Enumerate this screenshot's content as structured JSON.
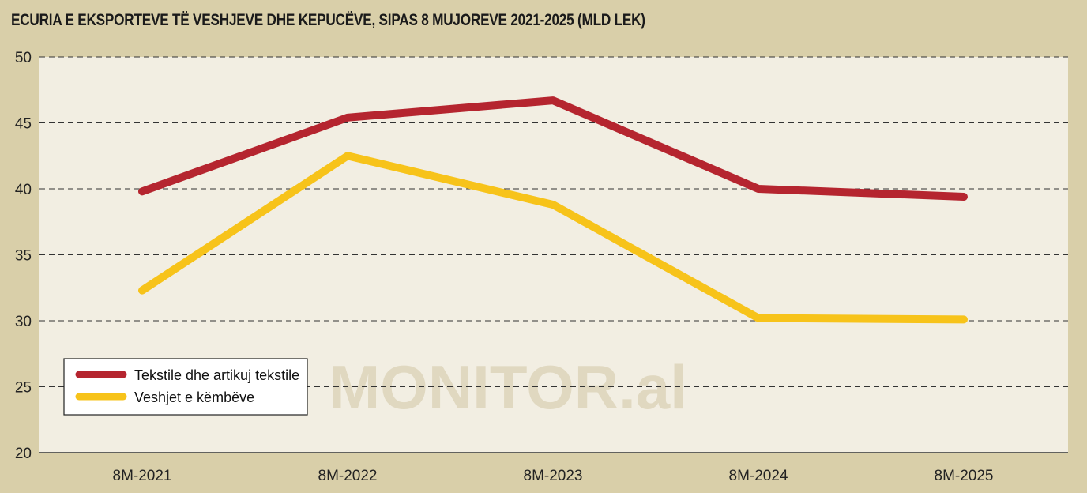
{
  "title": "ECURIA E EKSPORTEVE TË VESHJEVE DHE KEPUCËVE, SIPAS 8 MUJOREVE 2021-2025 (MLD LEK)",
  "watermark": "MONITOR.al",
  "colors": {
    "background": "#d9cfa9",
    "plot_background": "#f2eee2",
    "series_1": "#b5252f",
    "series_2": "#f7c31a"
  },
  "chart_data": {
    "type": "line",
    "title": "ECURIA E EKSPORTEVE TË VESHJEVE DHE KEPUCËVE, SIPAS 8 MUJOREVE 2021-2025 (MLD LEK)",
    "categories": [
      "8M-2021",
      "8M-2022",
      "8M-2023",
      "8M-2024",
      "8M-2025"
    ],
    "series": [
      {
        "name": "Tekstile dhe artikuj tekstile",
        "values": [
          39.8,
          45.4,
          46.7,
          40.0,
          39.4
        ]
      },
      {
        "name": "Veshjet e këmbëve",
        "values": [
          32.3,
          42.5,
          38.8,
          30.2,
          30.1
        ]
      }
    ],
    "ylim": [
      20,
      50
    ],
    "yticks": [
      "20",
      "25",
      "30",
      "35",
      "40",
      "45",
      "50"
    ],
    "grid": "horizontal dashed",
    "legend": "bottom-left",
    "xlabel": "",
    "ylabel": ""
  }
}
